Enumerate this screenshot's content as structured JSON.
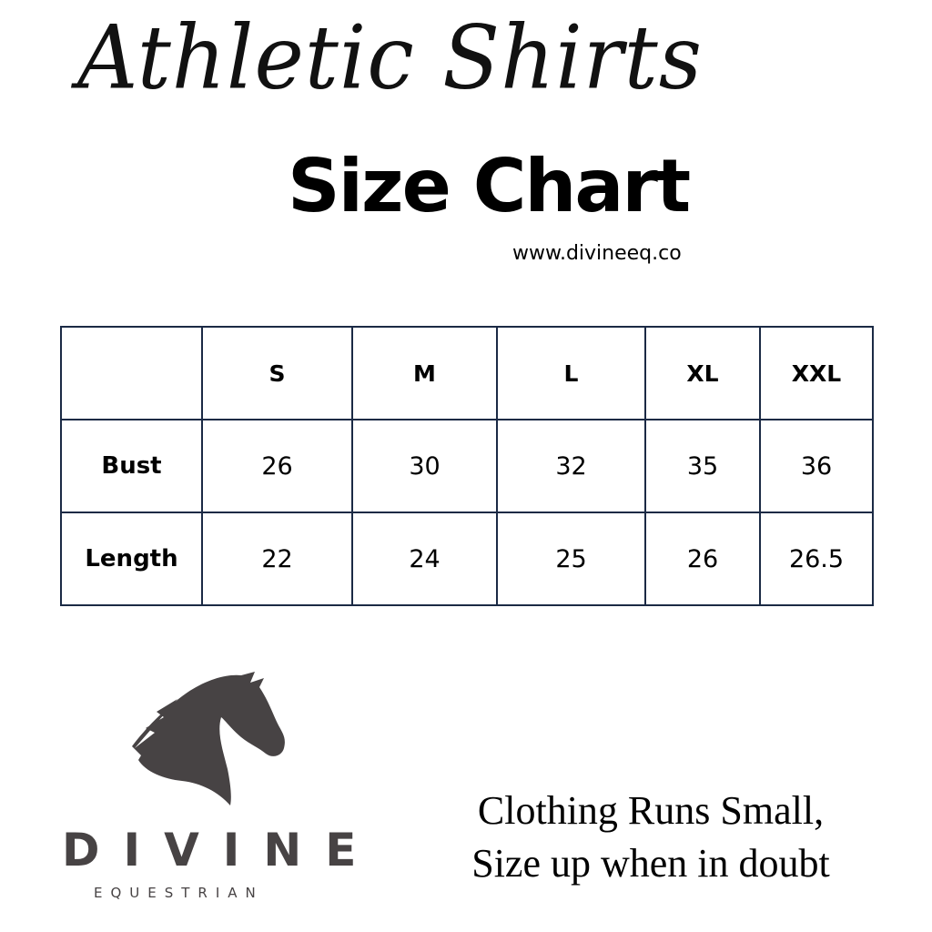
{
  "header": {
    "script_title": "Athletic Shirts",
    "title": "Size Chart",
    "url": "www.divineeq.co"
  },
  "table": {
    "columns": [
      "",
      "S",
      "M",
      "L",
      "XL",
      "XXL"
    ],
    "rows": [
      {
        "label": "Bust",
        "values": [
          "26",
          "30",
          "32",
          "35",
          "36"
        ]
      },
      {
        "label": "Length",
        "values": [
          "22",
          "24",
          "25",
          "26",
          "26.5"
        ]
      }
    ]
  },
  "logo": {
    "icon": "horse-head-icon",
    "name": "DIVINE",
    "sub": "EQUESTRIAN",
    "color": "#474344"
  },
  "note": {
    "line1": "Clothing Runs Small,",
    "line2": "Size up when in doubt"
  },
  "colors": {
    "table_border": "#1b2a45"
  }
}
